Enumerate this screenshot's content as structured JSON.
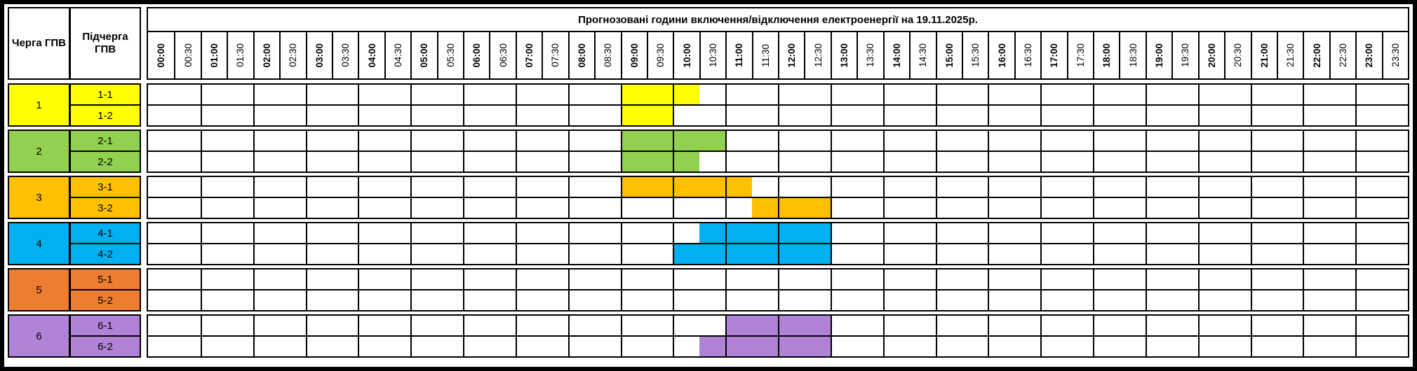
{
  "header": {
    "queue_col_label": "Черга ГПВ",
    "subqueue_col_label": "Підчерга ГПВ",
    "title": "Прогнозовані години включення/відключення електроенергії на 19.11.2025р."
  },
  "time_slots": [
    "00:00",
    "00:30",
    "01:00",
    "01:30",
    "02:00",
    "02:30",
    "03:00",
    "03:30",
    "04:00",
    "04:30",
    "05:00",
    "05:30",
    "06:00",
    "06:30",
    "07:00",
    "07:30",
    "08:00",
    "08:30",
    "09:00",
    "09:30",
    "10:00",
    "10:30",
    "11:00",
    "11:30",
    "12:00",
    "12:30",
    "13:00",
    "13:30",
    "14:00",
    "14:30",
    "15:00",
    "15:30",
    "16:00",
    "16:30",
    "17:00",
    "17:30",
    "18:00",
    "18:30",
    "19:00",
    "19:30",
    "20:00",
    "20:30",
    "21:00",
    "21:30",
    "22:00",
    "22:30",
    "23:00",
    "23:30"
  ],
  "queues": [
    {
      "number": "1",
      "color": "#FFFF00",
      "subqueues": [
        {
          "label": "1-1",
          "slots": [
            18,
            19,
            20
          ]
        },
        {
          "label": "1-2",
          "slots": [
            18,
            19
          ]
        }
      ]
    },
    {
      "number": "2",
      "color": "#92D050",
      "subqueues": [
        {
          "label": "2-1",
          "slots": [
            18,
            19,
            20,
            21
          ]
        },
        {
          "label": "2-2",
          "slots": [
            18,
            19,
            20
          ]
        }
      ]
    },
    {
      "number": "3",
      "color": "#FFC000",
      "subqueues": [
        {
          "label": "3-1",
          "slots": [
            18,
            19,
            20,
            21,
            22
          ]
        },
        {
          "label": "3-2",
          "slots": [
            23,
            24,
            25
          ]
        }
      ]
    },
    {
      "number": "4",
      "color": "#00B0F0",
      "subqueues": [
        {
          "label": "4-1",
          "slots": [
            21,
            22,
            23,
            24,
            25
          ]
        },
        {
          "label": "4-2",
          "slots": [
            20,
            21,
            22,
            23,
            24,
            25
          ]
        }
      ]
    },
    {
      "number": "5",
      "color": "#ED7D31",
      "subqueues": [
        {
          "label": "5-1",
          "slots": []
        },
        {
          "label": "5-2",
          "slots": []
        }
      ]
    },
    {
      "number": "6",
      "color": "#B183D6",
      "subqueues": [
        {
          "label": "6-1",
          "slots": [
            22,
            23,
            24,
            25
          ]
        },
        {
          "label": "6-2",
          "slots": [
            21,
            22,
            23,
            24,
            25
          ]
        }
      ]
    }
  ],
  "chart_data": {
    "type": "table",
    "title": "Прогнозовані години включення/відключення електроенергії на 19.11.2025р.",
    "x_axis": "time, 30-minute slots from 00:00 to 23:30",
    "legend_position": "none",
    "grid": true,
    "series": [
      {
        "name": "1-1",
        "color": "#FFFF00",
        "outage_intervals": [
          [
            "09:00",
            "10:30"
          ]
        ]
      },
      {
        "name": "1-2",
        "color": "#FFFF00",
        "outage_intervals": [
          [
            "09:00",
            "10:00"
          ]
        ]
      },
      {
        "name": "2-1",
        "color": "#92D050",
        "outage_intervals": [
          [
            "09:00",
            "11:00"
          ]
        ]
      },
      {
        "name": "2-2",
        "color": "#92D050",
        "outage_intervals": [
          [
            "09:00",
            "10:30"
          ]
        ]
      },
      {
        "name": "3-1",
        "color": "#FFC000",
        "outage_intervals": [
          [
            "09:00",
            "11:30"
          ]
        ]
      },
      {
        "name": "3-2",
        "color": "#FFC000",
        "outage_intervals": [
          [
            "11:30",
            "13:00"
          ]
        ]
      },
      {
        "name": "4-1",
        "color": "#00B0F0",
        "outage_intervals": [
          [
            "10:30",
            "13:00"
          ]
        ]
      },
      {
        "name": "4-2",
        "color": "#00B0F0",
        "outage_intervals": [
          [
            "10:00",
            "13:00"
          ]
        ]
      },
      {
        "name": "5-1",
        "color": "#ED7D31",
        "outage_intervals": []
      },
      {
        "name": "5-2",
        "color": "#ED7D31",
        "outage_intervals": []
      },
      {
        "name": "6-1",
        "color": "#B183D6",
        "outage_intervals": [
          [
            "11:00",
            "13:00"
          ]
        ]
      },
      {
        "name": "6-2",
        "color": "#B183D6",
        "outage_intervals": [
          [
            "10:30",
            "13:00"
          ]
        ]
      }
    ]
  }
}
